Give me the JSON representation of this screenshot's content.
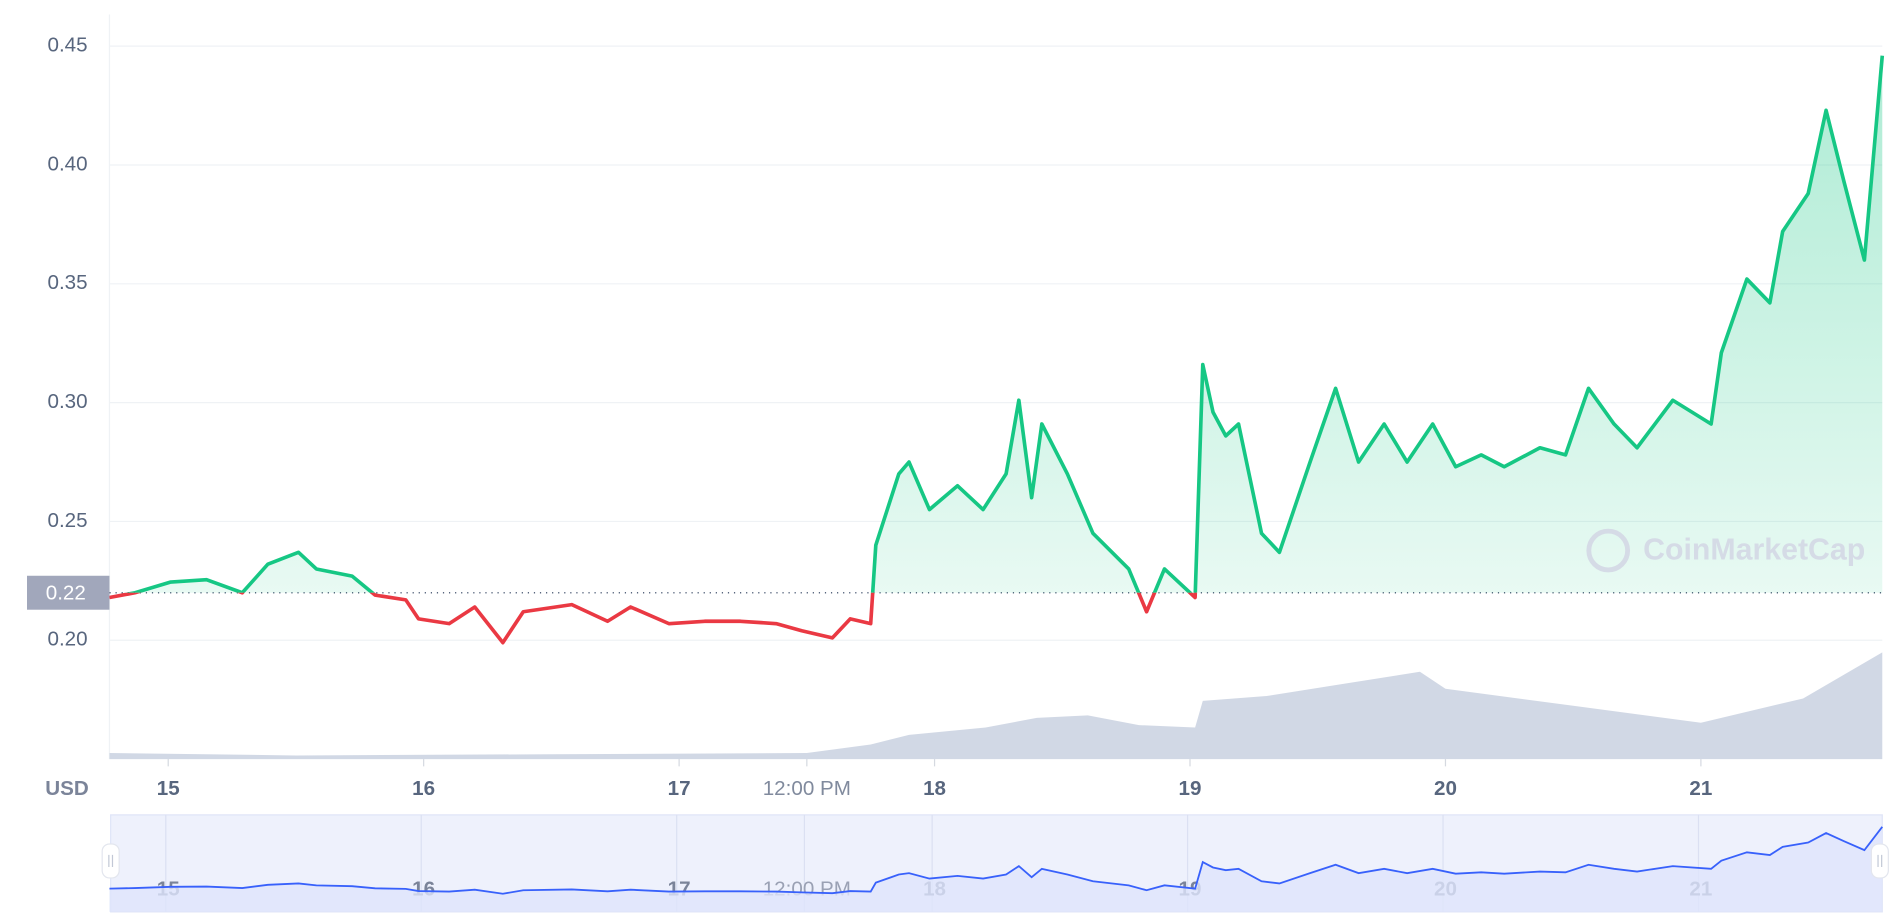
{
  "chart_data": {
    "type": "line",
    "x_label": "USD",
    "watermark": "CoinMarketCap",
    "reference": {
      "value": 0.22,
      "label": "0.22"
    },
    "xlim": [
      14.77,
      21.71
    ],
    "xticks": [
      15,
      16,
      17,
      {
        "value": 17.5,
        "label": "12:00 PM"
      },
      18,
      19,
      20,
      21
    ],
    "ylim": [
      0.15,
      0.4633
    ],
    "yticks": [
      {
        "value": 0.2,
        "label": "0.20"
      },
      0.25,
      {
        "value": 0.3,
        "label": "0.30"
      },
      0.35,
      {
        "value": 0.4,
        "label": "0.40"
      },
      0.45
    ],
    "y2lim": [
      0,
      100
    ],
    "grid": true,
    "x": [
      14.77,
      14.87,
      15.01,
      15.15,
      15.29,
      15.39,
      15.51,
      15.58,
      15.72,
      15.81,
      15.93,
      15.98,
      16.1,
      16.2,
      16.31,
      16.39,
      16.58,
      16.72,
      16.81,
      16.96,
      17.1,
      17.24,
      17.38,
      17.48,
      17.6,
      17.67,
      17.75,
      17.77,
      17.86,
      17.9,
      17.98,
      18.09,
      18.19,
      18.28,
      18.33,
      18.38,
      18.42,
      18.52,
      18.62,
      18.76,
      18.83,
      18.9,
      19.02,
      19.05,
      19.09,
      19.14,
      19.19,
      19.28,
      19.35,
      19.47,
      19.57,
      19.66,
      19.76,
      19.85,
      19.95,
      20.04,
      20.14,
      20.23,
      20.37,
      20.47,
      20.56,
      20.66,
      20.75,
      20.89,
      21.04,
      21.08,
      21.18,
      21.27,
      21.32,
      21.42,
      21.49,
      21.56,
      21.64,
      21.71
    ],
    "series": [
      {
        "color": "#16c784",
        "down_color": "#ea3943",
        "values": [
          0.218,
          0.22,
          0.2245,
          0.2255,
          0.22,
          0.232,
          0.237,
          0.23,
          0.227,
          0.219,
          0.217,
          0.209,
          0.207,
          0.214,
          0.199,
          0.212,
          0.215,
          0.208,
          0.214,
          0.207,
          0.208,
          0.208,
          0.207,
          0.204,
          0.201,
          0.209,
          0.207,
          0.24,
          0.27,
          0.275,
          0.255,
          0.265,
          0.255,
          0.27,
          0.301,
          0.26,
          0.291,
          0.27,
          0.245,
          0.23,
          0.212,
          0.23,
          0.218,
          0.316,
          0.296,
          0.286,
          0.291,
          0.245,
          0.237,
          0.275,
          0.306,
          0.275,
          0.291,
          0.275,
          0.291,
          0.273,
          0.278,
          0.273,
          0.281,
          0.278,
          0.306,
          0.291,
          0.281,
          0.301,
          0.291,
          0.321,
          0.352,
          0.342,
          0.372,
          0.388,
          0.423,
          0.393,
          0.36,
          0.446
        ]
      }
    ],
    "volume": {
      "axis": "y2",
      "color": "#cfd6e4",
      "x": [
        14.77,
        15.5,
        16.5,
        17.5,
        17.75,
        17.9,
        18.2,
        18.4,
        18.6,
        18.8,
        19.02,
        19.05,
        19.3,
        19.6,
        19.9,
        20.0,
        20.5,
        21.0,
        21.4,
        21.71
      ],
      "values": [
        5,
        3,
        4,
        5,
        12,
        20,
        26,
        34,
        36,
        28,
        26,
        48,
        52,
        62,
        72,
        58,
        44,
        30,
        50,
        88
      ]
    }
  }
}
